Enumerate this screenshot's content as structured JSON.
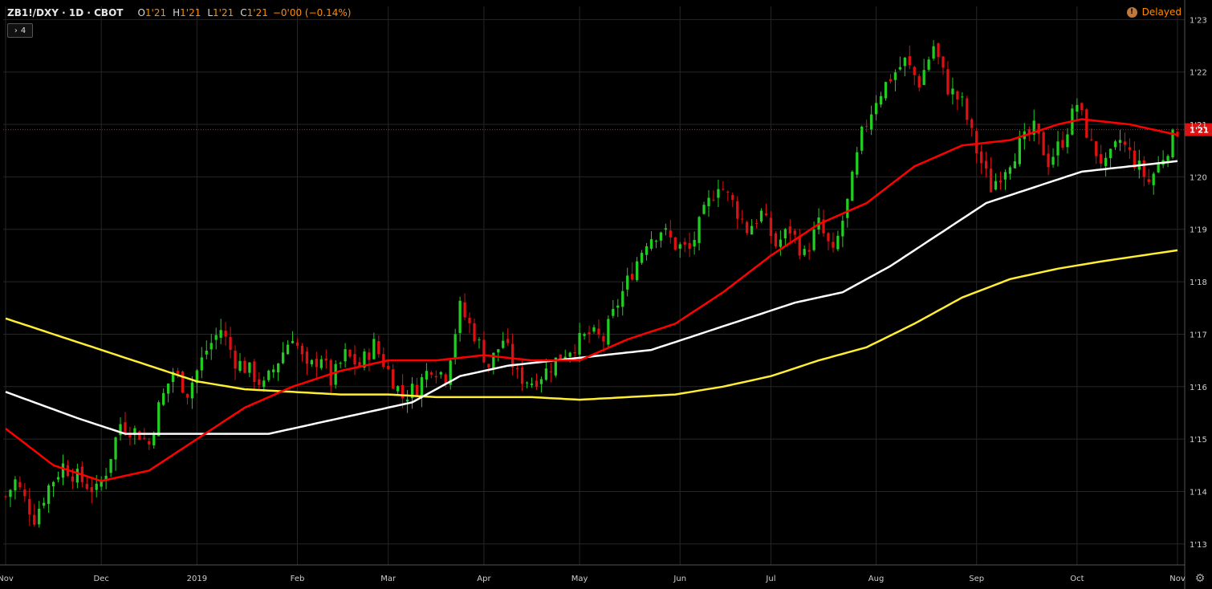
{
  "header": {
    "symbol": "ZB1!/DXY",
    "interval": "1D",
    "exchange": "CBOT",
    "open_label": "O",
    "open": "1'21",
    "high_label": "H",
    "high": "1'21",
    "low_label": "L",
    "low": "1'21",
    "close_label": "C",
    "close": "1'21",
    "change": "−0'00 (−0.14%)",
    "collapse_count": "4",
    "delayed_label": "Delayed"
  },
  "colors": {
    "background": "#000000",
    "grid": "#262626",
    "up": "#22cc22",
    "down": "#dd1111",
    "ma_red": "#ff0000",
    "ma_white": "#ffffff",
    "ma_yellow": "#ffee33",
    "price_line": "#dd1111"
  },
  "chart_data": {
    "type": "candlestick",
    "y_tick_labels": [
      "1'23",
      "1'22",
      "1'21",
      "1'20",
      "1'19",
      "1'18",
      "1'17",
      "1'16",
      "1'15",
      "1'14",
      "1'13"
    ],
    "y_tick_values": [
      123,
      122,
      121,
      120,
      119,
      118,
      117,
      116,
      115,
      114,
      113
    ],
    "ylim": [
      112.6,
      123.25
    ],
    "x_tick_labels": [
      "Nov",
      "Dec",
      "2019",
      "Feb",
      "Mar",
      "Apr",
      "May",
      "Jun",
      "Jul",
      "Aug",
      "Sep",
      "Oct",
      "Nov"
    ],
    "x_tick_index": [
      0,
      20,
      40,
      61,
      80,
      100,
      120,
      141,
      160,
      182,
      203,
      224,
      245
    ],
    "last_price_label": "1'21",
    "last_price": 120.9,
    "bar_count": 246,
    "anchors": [
      [
        0,
        113.9
      ],
      [
        2,
        114.2
      ],
      [
        6,
        113.5
      ],
      [
        9,
        114.1
      ],
      [
        12,
        114.5
      ],
      [
        16,
        114.2
      ],
      [
        19,
        114.0
      ],
      [
        21,
        114.4
      ],
      [
        24,
        115.3
      ],
      [
        28,
        115.1
      ],
      [
        30,
        114.9
      ],
      [
        32,
        115.6
      ],
      [
        35,
        116.3
      ],
      [
        38,
        115.9
      ],
      [
        42,
        116.7
      ],
      [
        45,
        117.1
      ],
      [
        48,
        116.5
      ],
      [
        51,
        116.3
      ],
      [
        54,
        116.0
      ],
      [
        57,
        116.5
      ],
      [
        60,
        117.0
      ],
      [
        63,
        116.3
      ],
      [
        66,
        116.6
      ],
      [
        68,
        116.1
      ],
      [
        71,
        116.6
      ],
      [
        74,
        116.4
      ],
      [
        77,
        116.8
      ],
      [
        80,
        116.3
      ],
      [
        83,
        115.8
      ],
      [
        86,
        116.0
      ],
      [
        89,
        116.4
      ],
      [
        92,
        116.2
      ],
      [
        95,
        117.5
      ],
      [
        98,
        117.0
      ],
      [
        101,
        116.4
      ],
      [
        104,
        116.9
      ],
      [
        107,
        116.2
      ],
      [
        110,
        116.1
      ],
      [
        113,
        116.3
      ],
      [
        116,
        116.6
      ],
      [
        119,
        116.8
      ],
      [
        122,
        117.0
      ],
      [
        125,
        116.9
      ],
      [
        128,
        117.6
      ],
      [
        131,
        118.2
      ],
      [
        134,
        118.8
      ],
      [
        137,
        119.0
      ],
      [
        140,
        118.7
      ],
      [
        143,
        118.6
      ],
      [
        146,
        119.3
      ],
      [
        149,
        119.9
      ],
      [
        152,
        119.5
      ],
      [
        155,
        119.0
      ],
      [
        158,
        119.3
      ],
      [
        161,
        118.7
      ],
      [
        164,
        119.0
      ],
      [
        167,
        118.5
      ],
      [
        170,
        119.1
      ],
      [
        173,
        118.5
      ],
      [
        176,
        119.5
      ],
      [
        179,
        120.8
      ],
      [
        182,
        121.5
      ],
      [
        185,
        121.9
      ],
      [
        188,
        122.2
      ],
      [
        191,
        121.8
      ],
      [
        194,
        122.5
      ],
      [
        197,
        121.7
      ],
      [
        200,
        121.4
      ],
      [
        203,
        120.5
      ],
      [
        206,
        119.8
      ],
      [
        209,
        120.2
      ],
      [
        212,
        120.6
      ],
      [
        215,
        120.9
      ],
      [
        218,
        120.3
      ],
      [
        221,
        120.7
      ],
      [
        224,
        121.4
      ],
      [
        227,
        120.6
      ],
      [
        230,
        120.2
      ],
      [
        233,
        120.7
      ],
      [
        236,
        120.3
      ],
      [
        239,
        119.9
      ],
      [
        242,
        120.4
      ],
      [
        245,
        120.9
      ]
    ],
    "ma_red": [
      [
        0,
        115.2
      ],
      [
        10,
        114.5
      ],
      [
        20,
        114.2
      ],
      [
        30,
        114.4
      ],
      [
        40,
        115.0
      ],
      [
        50,
        115.6
      ],
      [
        60,
        116.0
      ],
      [
        70,
        116.3
      ],
      [
        80,
        116.5
      ],
      [
        90,
        116.5
      ],
      [
        100,
        116.6
      ],
      [
        110,
        116.5
      ],
      [
        120,
        116.5
      ],
      [
        130,
        116.9
      ],
      [
        140,
        117.2
      ],
      [
        150,
        117.8
      ],
      [
        160,
        118.5
      ],
      [
        170,
        119.1
      ],
      [
        180,
        119.5
      ],
      [
        190,
        120.2
      ],
      [
        200,
        120.6
      ],
      [
        210,
        120.7
      ],
      [
        220,
        121.0
      ],
      [
        225,
        121.1
      ],
      [
        235,
        121.0
      ],
      [
        245,
        120.8
      ]
    ],
    "ma_white": [
      [
        0,
        115.9
      ],
      [
        15,
        115.4
      ],
      [
        25,
        115.1
      ],
      [
        40,
        115.1
      ],
      [
        55,
        115.1
      ],
      [
        65,
        115.3
      ],
      [
        75,
        115.5
      ],
      [
        85,
        115.7
      ],
      [
        95,
        116.2
      ],
      [
        105,
        116.4
      ],
      [
        115,
        116.5
      ],
      [
        125,
        116.6
      ],
      [
        135,
        116.7
      ],
      [
        145,
        117.0
      ],
      [
        155,
        117.3
      ],
      [
        165,
        117.6
      ],
      [
        175,
        117.8
      ],
      [
        185,
        118.3
      ],
      [
        195,
        118.9
      ],
      [
        205,
        119.5
      ],
      [
        215,
        119.8
      ],
      [
        225,
        120.1
      ],
      [
        235,
        120.2
      ],
      [
        245,
        120.3
      ]
    ],
    "ma_yellow": [
      [
        0,
        117.3
      ],
      [
        10,
        117.0
      ],
      [
        20,
        116.7
      ],
      [
        30,
        116.4
      ],
      [
        40,
        116.1
      ],
      [
        50,
        115.95
      ],
      [
        60,
        115.9
      ],
      [
        70,
        115.85
      ],
      [
        80,
        115.85
      ],
      [
        90,
        115.8
      ],
      [
        100,
        115.8
      ],
      [
        110,
        115.8
      ],
      [
        120,
        115.75
      ],
      [
        130,
        115.8
      ],
      [
        140,
        115.85
      ],
      [
        150,
        116.0
      ],
      [
        160,
        116.2
      ],
      [
        170,
        116.5
      ],
      [
        180,
        116.75
      ],
      [
        190,
        117.2
      ],
      [
        200,
        117.7
      ],
      [
        210,
        118.05
      ],
      [
        220,
        118.25
      ],
      [
        230,
        118.4
      ],
      [
        245,
        118.6
      ]
    ]
  }
}
